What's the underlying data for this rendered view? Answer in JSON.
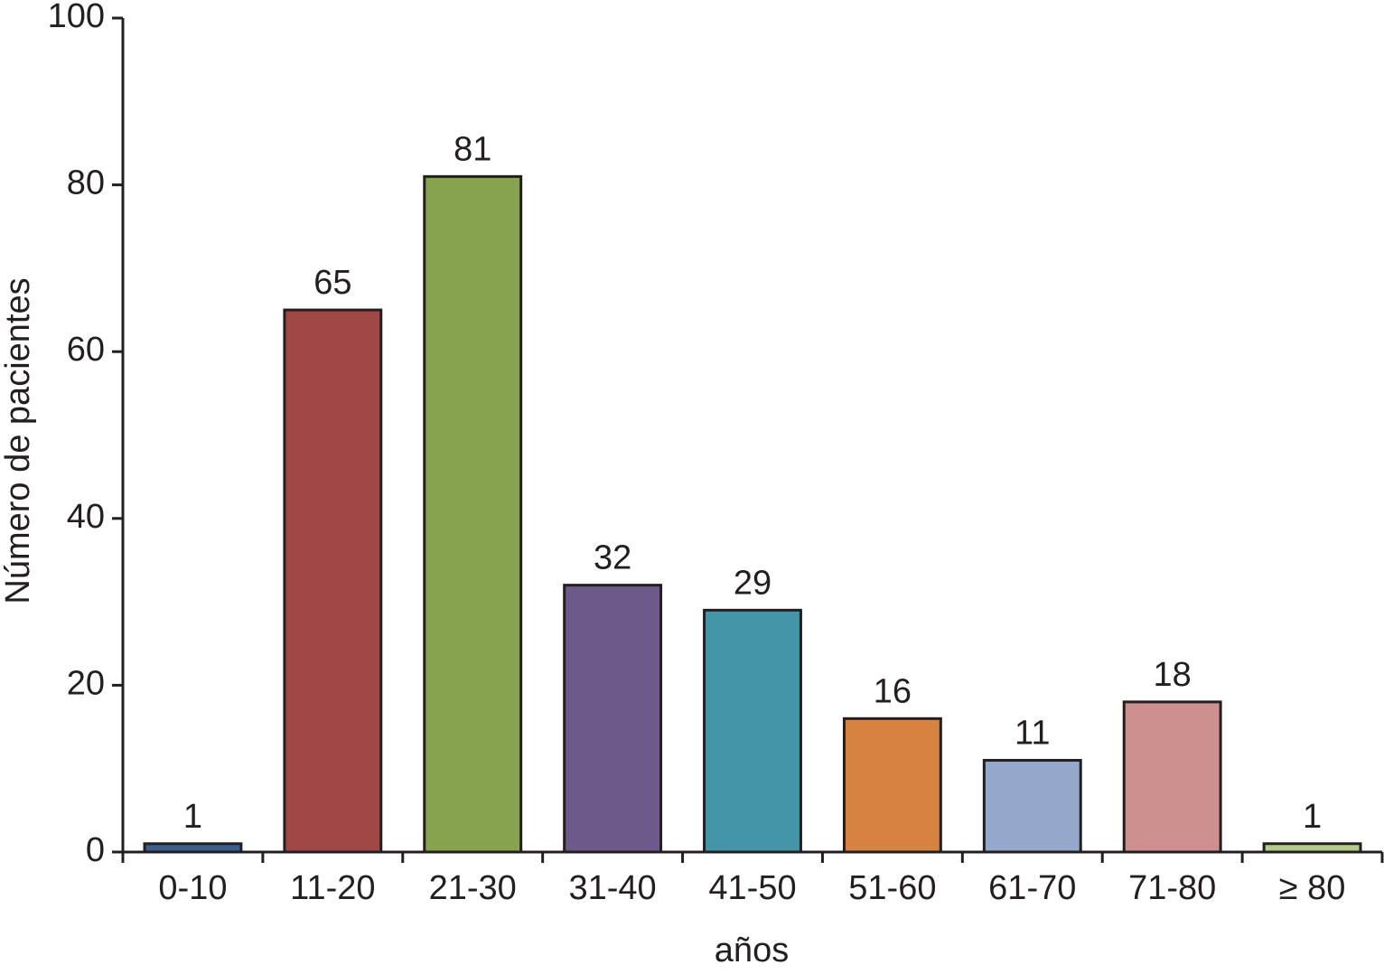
{
  "chart_data": {
    "type": "bar",
    "x_label": "años",
    "y_label": "Número de pacientes",
    "categories": [
      "0-10",
      "11-20",
      "21-30",
      "31-40",
      "41-50",
      "51-60",
      "61-70",
      "71-80",
      "≥ 80"
    ],
    "values": [
      1,
      65,
      81,
      32,
      29,
      16,
      11,
      18,
      1
    ],
    "colors": [
      "#3b5e90",
      "#a14846",
      "#88a34e",
      "#6d5a8b",
      "#4595a8",
      "#d5833f",
      "#93a8ca",
      "#cd908e",
      "#b5cb8c"
    ],
    "ylim": [
      0,
      100
    ],
    "yticks": [
      0,
      20,
      40,
      60,
      80,
      100
    ],
    "grid": false
  }
}
